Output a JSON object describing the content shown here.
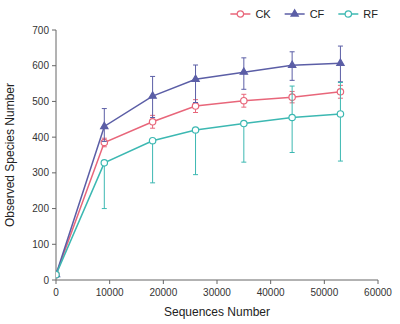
{
  "chart_data": {
    "type": "line",
    "xlabel": "Sequences Number",
    "ylabel": "Observed Species Number",
    "x": [
      1,
      9000,
      18000,
      26000,
      35000,
      44000,
      53000
    ],
    "xlim": [
      0,
      60000
    ],
    "ylim": [
      0,
      700
    ],
    "xticks": [
      0,
      10000,
      20000,
      30000,
      40000,
      50000,
      60000
    ],
    "yticks": [
      0,
      100,
      200,
      300,
      400,
      500,
      600,
      700
    ],
    "grid": false,
    "legend": "upper right",
    "series": [
      {
        "name": "CK",
        "color": "#e8667a",
        "marker": "circle-open",
        "values": [
          15,
          385,
          443,
          487,
          502,
          512,
          527
        ],
        "yerr_low": [
          0,
          12,
          18,
          18,
          18,
          16,
          18
        ],
        "yerr_high": [
          0,
          12,
          18,
          18,
          18,
          16,
          18
        ]
      },
      {
        "name": "CF",
        "color": "#5b5ea6",
        "marker": "triangle",
        "values": [
          15,
          430,
          515,
          562,
          582,
          601,
          607
        ],
        "yerr_low": [
          0,
          42,
          60,
          65,
          48,
          42,
          52
        ],
        "yerr_high": [
          0,
          50,
          55,
          40,
          40,
          38,
          48
        ]
      },
      {
        "name": "RF",
        "color": "#3cb8b2",
        "marker": "circle-open",
        "values": [
          15,
          328,
          390,
          420,
          438,
          455,
          465
        ],
        "yerr_low": [
          0,
          128,
          118,
          125,
          108,
          98,
          132
        ],
        "yerr_high": [
          0,
          0,
          0,
          0,
          0,
          88,
          88
        ]
      }
    ]
  }
}
